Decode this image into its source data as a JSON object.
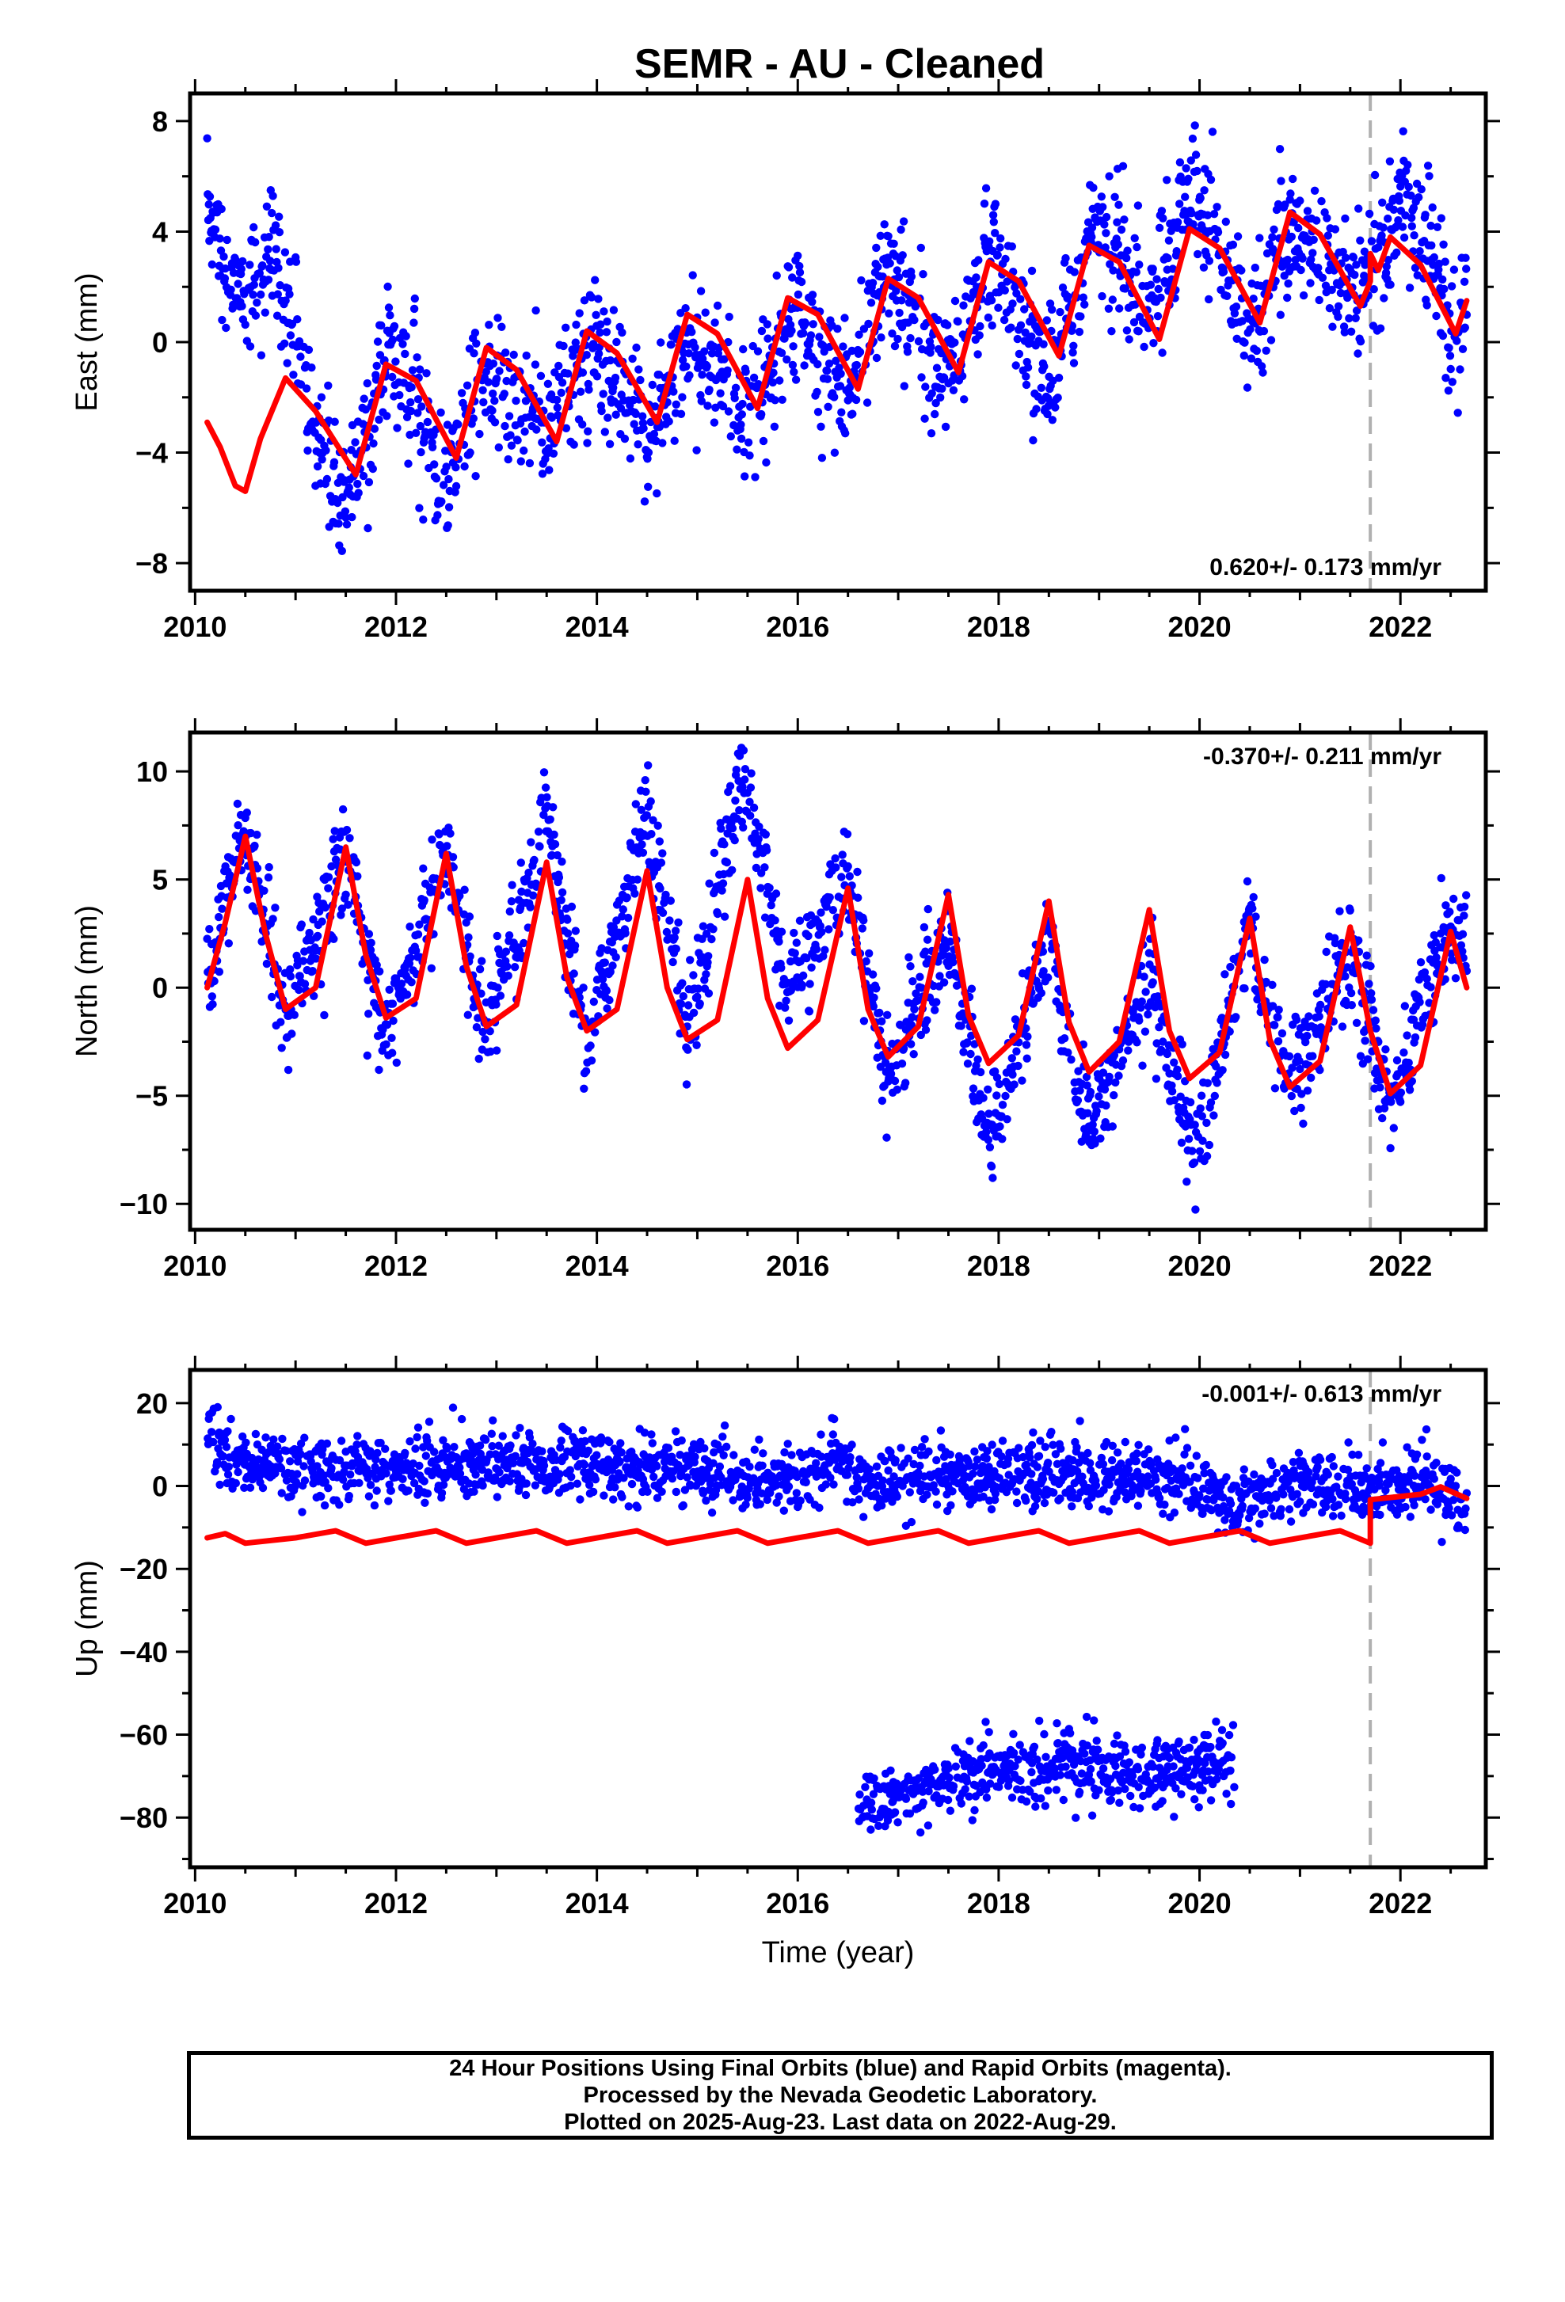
{
  "title": "SEMR  - AU - Cleaned",
  "colors": {
    "final_orbits": "#0000ff",
    "model": "#ff0000",
    "frame": "#000000",
    "offset_marker": "#b0b0b0"
  },
  "caption": {
    "line1": "24 Hour Positions Using Final Orbits (blue) and Rapid Orbits (magenta).",
    "line2": "Processed by the Nevada Geodetic Laboratory.",
    "line3": "Plotted on 2025-Aug-23. Last data on 2022-Aug-29."
  },
  "chart_data": [
    {
      "type": "scatter",
      "panel": "east",
      "ylabel": "East (mm)",
      "xlabel": "",
      "rate_text": "0.620+/- 0.173 mm/yr",
      "rate_position": "bottom-right",
      "xlim": [
        2009.95,
        2022.85
      ],
      "ylim": [
        -9,
        9
      ],
      "xticks": [
        2010,
        2012,
        2014,
        2016,
        2018,
        2020,
        2022
      ],
      "yticks": [
        -8,
        -4,
        0,
        4,
        8
      ],
      "offset_epoch": 2021.7,
      "data_span": [
        2010.1,
        2022.66
      ],
      "series": [
        {
          "kind": "scatter",
          "color": "#0000ff",
          "anchors": [
            [
              2010.12,
              5.2
            ],
            [
              2010.3,
              2.2
            ],
            [
              2010.6,
              2.0
            ],
            [
              2010.8,
              3.5
            ],
            [
              2010.95,
              1.0
            ],
            [
              2011.2,
              -3.0
            ],
            [
              2011.5,
              -5.6
            ],
            [
              2011.7,
              -3.5
            ],
            [
              2011.9,
              -0.6
            ],
            [
              2012.2,
              -2.0
            ],
            [
              2012.5,
              -5.5
            ],
            [
              2012.75,
              -2.5
            ],
            [
              2012.9,
              -0.8
            ],
            [
              2013.2,
              -2.5
            ],
            [
              2013.5,
              -3.0
            ],
            [
              2013.8,
              -0.5
            ],
            [
              2014.0,
              0.0
            ],
            [
              2014.3,
              -2.0
            ],
            [
              2014.55,
              -3.3
            ],
            [
              2014.9,
              0.0
            ],
            [
              2015.1,
              -0.5
            ],
            [
              2015.5,
              -2.8
            ],
            [
              2015.9,
              0.8
            ],
            [
              2016.1,
              0.0
            ],
            [
              2016.5,
              -2.0
            ],
            [
              2016.9,
              2.8
            ],
            [
              2017.1,
              1.0
            ],
            [
              2017.5,
              -1.0
            ],
            [
              2017.9,
              3.6
            ],
            [
              2018.1,
              2.0
            ],
            [
              2018.5,
              -1.5
            ],
            [
              2018.95,
              4.5
            ],
            [
              2019.2,
              3.0
            ],
            [
              2019.5,
              1.5
            ],
            [
              2019.95,
              5.8
            ],
            [
              2020.2,
              3.5
            ],
            [
              2020.5,
              0.2
            ],
            [
              2020.9,
              4.2
            ],
            [
              2021.2,
              3.0
            ],
            [
              2021.5,
              2.0
            ],
            [
              2021.8,
              3.2
            ],
            [
              2022.0,
              5.0
            ],
            [
              2022.3,
              3.0
            ],
            [
              2022.5,
              0.5
            ],
            [
              2022.66,
              1.0
            ]
          ],
          "scatter_sd": 1.2
        },
        {
          "kind": "model",
          "color": "#ff0000",
          "points": [
            [
              2010.12,
              -2.9
            ],
            [
              2010.25,
              -3.8
            ],
            [
              2010.4,
              -5.2
            ],
            [
              2010.5,
              -5.4
            ],
            [
              2010.65,
              -3.5
            ],
            [
              2010.9,
              -1.3
            ],
            [
              2011.2,
              -2.5
            ],
            [
              2011.6,
              -4.8
            ],
            [
              2011.9,
              -0.8
            ],
            [
              2012.2,
              -1.4
            ],
            [
              2012.6,
              -4.2
            ],
            [
              2012.9,
              -0.2
            ],
            [
              2013.2,
              -1.0
            ],
            [
              2013.6,
              -3.6
            ],
            [
              2013.9,
              0.4
            ],
            [
              2014.2,
              -0.4
            ],
            [
              2014.6,
              -2.9
            ],
            [
              2014.9,
              1.0
            ],
            [
              2015.2,
              0.3
            ],
            [
              2015.6,
              -2.4
            ],
            [
              2015.9,
              1.6
            ],
            [
              2016.2,
              1.0
            ],
            [
              2016.6,
              -1.7
            ],
            [
              2016.9,
              2.3
            ],
            [
              2017.2,
              1.6
            ],
            [
              2017.6,
              -1.1
            ],
            [
              2017.9,
              2.9
            ],
            [
              2018.2,
              2.2
            ],
            [
              2018.6,
              -0.5
            ],
            [
              2018.9,
              3.5
            ],
            [
              2019.2,
              2.9
            ],
            [
              2019.6,
              0.1
            ],
            [
              2019.9,
              4.1
            ],
            [
              2020.2,
              3.4
            ],
            [
              2020.6,
              0.7
            ],
            [
              2020.9,
              4.7
            ],
            [
              2021.2,
              3.9
            ],
            [
              2021.6,
              1.3
            ],
            [
              2021.7,
              2.2
            ],
            [
              2021.7,
              3.2
            ],
            [
              2021.78,
              2.6
            ],
            [
              2021.9,
              3.8
            ],
            [
              2022.2,
              2.8
            ],
            [
              2022.55,
              0.3
            ],
            [
              2022.66,
              1.5
            ]
          ]
        }
      ]
    },
    {
      "type": "scatter",
      "panel": "north",
      "ylabel": "North (mm)",
      "xlabel": "",
      "rate_text": "-0.370+/- 0.211 mm/yr",
      "rate_position": "top-right",
      "xlim": [
        2009.95,
        2022.85
      ],
      "ylim": [
        -11.2,
        11.8
      ],
      "xticks": [
        2010,
        2012,
        2014,
        2016,
        2018,
        2020,
        2022
      ],
      "yticks": [
        -10,
        -5,
        0,
        5,
        10
      ],
      "offset_epoch": 2021.7,
      "data_span": [
        2010.1,
        2022.66
      ],
      "series": [
        {
          "kind": "scatter",
          "color": "#0000ff",
          "anchors": [
            [
              2010.12,
              0.5
            ],
            [
              2010.5,
              7.5
            ],
            [
              2010.9,
              -1.5
            ],
            [
              2011.5,
              6.5
            ],
            [
              2011.9,
              -2.5
            ],
            [
              2012.5,
              6.5
            ],
            [
              2012.9,
              -2.5
            ],
            [
              2013.5,
              7.5
            ],
            [
              2013.9,
              -2.5
            ],
            [
              2014.5,
              8.0
            ],
            [
              2014.9,
              -2.0
            ],
            [
              2015.45,
              10.0
            ],
            [
              2015.9,
              0.0
            ],
            [
              2016.5,
              5.5
            ],
            [
              2016.9,
              -4.5
            ],
            [
              2017.5,
              2.5
            ],
            [
              2017.9,
              -7.0
            ],
            [
              2018.5,
              2.0
            ],
            [
              2018.9,
              -6.5
            ],
            [
              2019.5,
              0.0
            ],
            [
              2019.95,
              -8.0
            ],
            [
              2020.5,
              3.0
            ],
            [
              2020.9,
              -4.5
            ],
            [
              2021.5,
              2.0
            ],
            [
              2021.9,
              -5.5
            ],
            [
              2022.5,
              3.0
            ],
            [
              2022.66,
              2.0
            ]
          ],
          "scatter_sd": 1.2
        },
        {
          "kind": "model",
          "color": "#ff0000",
          "points": [
            [
              2010.12,
              0.0
            ],
            [
              2010.3,
              3.0
            ],
            [
              2010.5,
              7.0
            ],
            [
              2010.7,
              2.5
            ],
            [
              2010.9,
              -1.0
            ],
            [
              2011.2,
              0.0
            ],
            [
              2011.5,
              6.5
            ],
            [
              2011.7,
              1.5
            ],
            [
              2011.9,
              -1.4
            ],
            [
              2012.2,
              -0.5
            ],
            [
              2012.5,
              6.2
            ],
            [
              2012.7,
              1.0
            ],
            [
              2012.9,
              -1.8
            ],
            [
              2013.2,
              -0.8
            ],
            [
              2013.5,
              5.8
            ],
            [
              2013.7,
              0.5
            ],
            [
              2013.9,
              -2.0
            ],
            [
              2014.2,
              -1.0
            ],
            [
              2014.5,
              5.4
            ],
            [
              2014.7,
              0.0
            ],
            [
              2014.9,
              -2.4
            ],
            [
              2015.2,
              -1.5
            ],
            [
              2015.5,
              5.0
            ],
            [
              2015.7,
              -0.5
            ],
            [
              2015.9,
              -2.8
            ],
            [
              2016.2,
              -1.5
            ],
            [
              2016.5,
              4.6
            ],
            [
              2016.7,
              -1.0
            ],
            [
              2016.9,
              -3.2
            ],
            [
              2017.2,
              -1.8
            ],
            [
              2017.5,
              4.3
            ],
            [
              2017.7,
              -1.3
            ],
            [
              2017.9,
              -3.5
            ],
            [
              2018.2,
              -2.2
            ],
            [
              2018.5,
              4.0
            ],
            [
              2018.7,
              -1.6
            ],
            [
              2018.9,
              -3.9
            ],
            [
              2019.2,
              -2.5
            ],
            [
              2019.5,
              3.6
            ],
            [
              2019.7,
              -2.0
            ],
            [
              2019.9,
              -4.2
            ],
            [
              2020.2,
              -3.0
            ],
            [
              2020.5,
              3.2
            ],
            [
              2020.7,
              -2.4
            ],
            [
              2020.9,
              -4.6
            ],
            [
              2021.2,
              -3.4
            ],
            [
              2021.5,
              2.8
            ],
            [
              2021.7,
              -2.0
            ],
            [
              2021.9,
              -4.9
            ],
            [
              2022.2,
              -3.6
            ],
            [
              2022.5,
              2.6
            ],
            [
              2022.66,
              0.0
            ]
          ]
        }
      ]
    },
    {
      "type": "scatter",
      "panel": "up",
      "ylabel": "Up (mm)",
      "xlabel": "Time (year)",
      "rate_text": "-0.001+/- 0.613 mm/yr",
      "rate_position": "top-right",
      "xlim": [
        2009.95,
        2022.85
      ],
      "ylim": [
        -92,
        28
      ],
      "xticks": [
        2010,
        2012,
        2014,
        2016,
        2018,
        2020,
        2022
      ],
      "yticks": [
        -80,
        -60,
        -40,
        -20,
        0,
        20
      ],
      "offset_epoch": 2021.7,
      "data_span": [
        2010.1,
        2022.66
      ],
      "series": [
        {
          "kind": "scatter",
          "color": "#0000ff",
          "anchors": [
            [
              2010.12,
              14.0
            ],
            [
              2010.4,
              6.0
            ],
            [
              2011.0,
              4.0
            ],
            [
              2012.0,
              4.0
            ],
            [
              2013.0,
              5.0
            ],
            [
              2014.0,
              5.0
            ],
            [
              2015.0,
              4.0
            ],
            [
              2015.9,
              0.0
            ],
            [
              2016.4,
              7.0
            ],
            [
              2016.6,
              2.0
            ],
            [
              2017.2,
              2.0
            ],
            [
              2018.3,
              3.0
            ],
            [
              2019.2,
              3.0
            ],
            [
              2020.0,
              0.0
            ],
            [
              2020.35,
              -5.0
            ],
            [
              2021.0,
              2.0
            ],
            [
              2021.7,
              -3.0
            ],
            [
              2022.2,
              2.0
            ],
            [
              2022.66,
              -5.0
            ]
          ],
          "scatter_sd": 4.2
        },
        {
          "kind": "scatter",
          "color": "#0000ff",
          "anchors": [
            [
              2016.6,
              -78.0
            ],
            [
              2017.0,
              -74.0
            ],
            [
              2017.5,
              -72.0
            ],
            [
              2018.0,
              -68.0
            ],
            [
              2018.5,
              -68.0
            ],
            [
              2019.0,
              -68.0
            ],
            [
              2019.5,
              -70.0
            ],
            [
              2020.0,
              -68.0
            ],
            [
              2020.35,
              -65.0
            ]
          ],
          "scatter_sd": 4.0
        },
        {
          "kind": "model",
          "color": "#ff0000",
          "points": [
            [
              2010.12,
              -12.5
            ],
            [
              2010.3,
              -11.5
            ],
            [
              2010.5,
              -13.8
            ],
            [
              2011.0,
              -12.5
            ],
            [
              2011.4,
              -10.8
            ],
            [
              2011.7,
              -13.8
            ],
            [
              2012.4,
              -10.8
            ],
            [
              2012.7,
              -13.8
            ],
            [
              2013.4,
              -10.8
            ],
            [
              2013.7,
              -13.8
            ],
            [
              2014.4,
              -10.8
            ],
            [
              2014.7,
              -13.8
            ],
            [
              2015.4,
              -10.8
            ],
            [
              2015.7,
              -13.8
            ],
            [
              2016.4,
              -10.8
            ],
            [
              2016.7,
              -13.8
            ],
            [
              2017.4,
              -10.8
            ],
            [
              2017.7,
              -13.8
            ],
            [
              2018.4,
              -10.8
            ],
            [
              2018.7,
              -13.8
            ],
            [
              2019.4,
              -10.8
            ],
            [
              2019.7,
              -13.8
            ],
            [
              2020.4,
              -10.8
            ],
            [
              2020.7,
              -13.8
            ],
            [
              2021.4,
              -10.8
            ],
            [
              2021.7,
              -13.8
            ],
            [
              2021.7,
              -3.3
            ],
            [
              2022.2,
              -2.0
            ],
            [
              2022.4,
              -0.2
            ],
            [
              2022.66,
              -3.0
            ]
          ]
        }
      ]
    }
  ]
}
